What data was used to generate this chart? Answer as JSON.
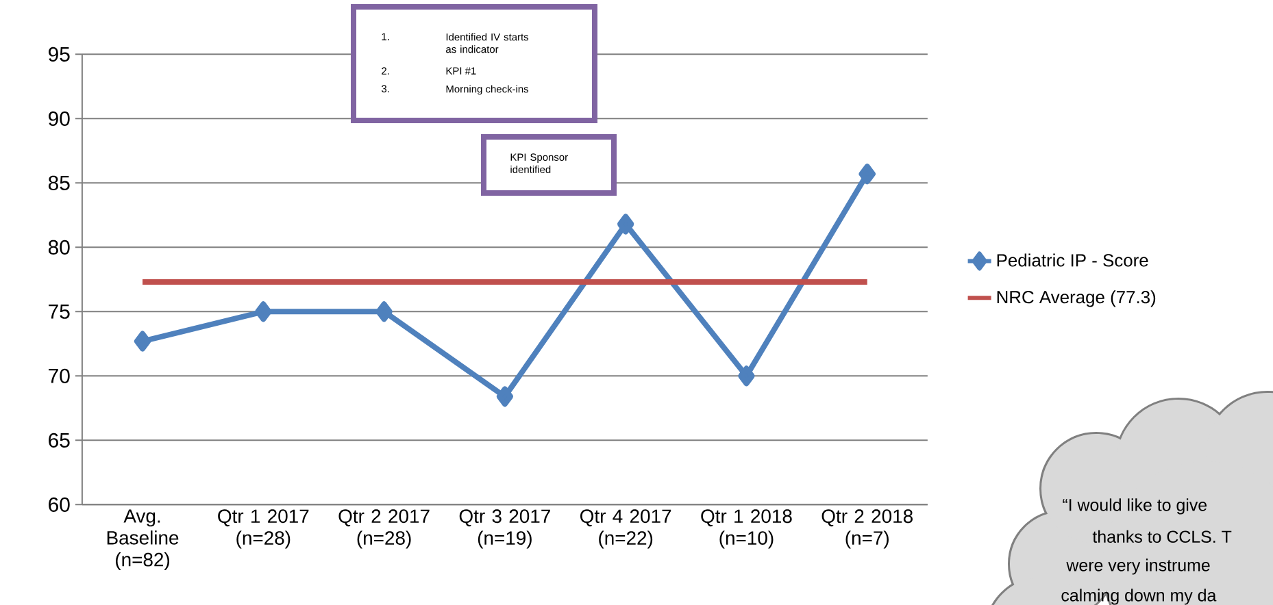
{
  "chart_data": {
    "type": "line",
    "categories": [
      "Avg. Baseline (n=82)",
      "Qtr 1 2017 (n=28)",
      "Qtr 2 2017 (n=28)",
      "Qtr 3 2017 (n=19)",
      "Qtr 4 2017 (n=22)",
      "Qtr 1 2018 (n=10)",
      "Qtr 2 2018 (n=7)"
    ],
    "series": [
      {
        "name": "Pediatric IP - Score",
        "color": "#4f81bd",
        "marker": "diamond",
        "values": [
          72.7,
          75,
          75,
          68.4,
          81.8,
          70,
          85.7
        ]
      },
      {
        "name": "NRC Average (77.3)",
        "color": "#c0504d",
        "marker": "none",
        "values": [
          77.3,
          77.3,
          77.3,
          77.3,
          77.3,
          77.3,
          77.3
        ]
      }
    ],
    "ylim": [
      60,
      95
    ],
    "yticks": [
      60,
      65,
      70,
      75,
      80,
      85,
      90,
      95
    ],
    "grid": "y",
    "legend": "right",
    "line_style": "solid",
    "annotations": [
      "1.",
      "Identified IV starts as indicator",
      "2.",
      "KPI #1",
      "3.",
      "Morning check-ins",
      "KPI Sponsor identified",
      "“I would like to give",
      "thanks to CCLS. T",
      "were very instrume",
      "calming down my da"
    ]
  }
}
